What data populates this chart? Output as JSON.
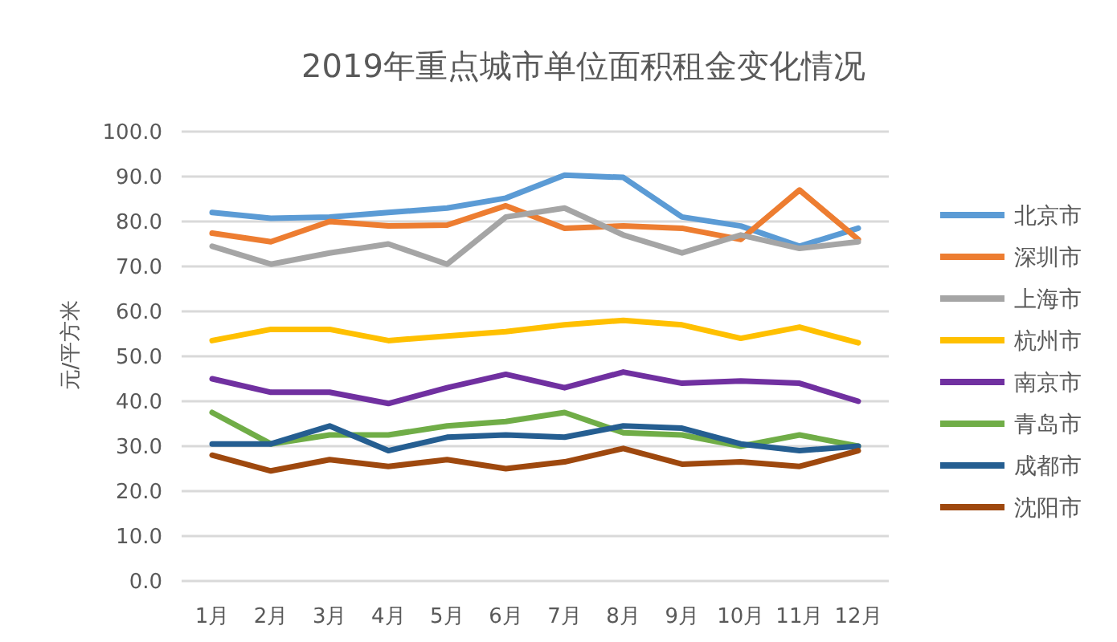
{
  "chart_data": {
    "type": "line",
    "title": "2019年重点城市单位面积租金变化情况",
    "ylabel": "元/平方米",
    "categories": [
      "1月",
      "2月",
      "3月",
      "4月",
      "5月",
      "6月",
      "7月",
      "8月",
      "9月",
      "10月",
      "11月",
      "12月"
    ],
    "series": [
      {
        "name": "北京市",
        "color": "#5b9bd5",
        "values": [
          82,
          80.7,
          81,
          82,
          83,
          85.2,
          90.3,
          89.8,
          81,
          79,
          74.5,
          78.5
        ]
      },
      {
        "name": "深圳市",
        "color": "#ed7d31",
        "values": [
          77.4,
          75.5,
          80,
          79,
          79.2,
          83.5,
          78.5,
          79,
          78.5,
          76,
          87,
          76
        ]
      },
      {
        "name": "上海市",
        "color": "#a5a5a5",
        "values": [
          74.5,
          70.5,
          73,
          75,
          70.5,
          81,
          83,
          77,
          73,
          77,
          74,
          75.5
        ]
      },
      {
        "name": "杭州市",
        "color": "#ffc000",
        "values": [
          53.5,
          56,
          56,
          53.5,
          54.5,
          55.5,
          57,
          58,
          57,
          54,
          56.5,
          53
        ]
      },
      {
        "name": "南京市",
        "color": "#7030a0",
        "values": [
          45,
          42,
          42,
          39.5,
          43,
          46,
          43,
          46.5,
          44,
          44.5,
          44,
          40
        ]
      },
      {
        "name": "青岛市",
        "color": "#70ad47",
        "values": [
          37.5,
          30.5,
          32.5,
          32.5,
          34.5,
          35.5,
          37.5,
          33,
          32.5,
          30,
          32.5,
          30
        ]
      },
      {
        "name": "成都市",
        "color": "#255e91",
        "values": [
          30.5,
          30.5,
          34.5,
          29,
          32,
          32.5,
          32,
          34.5,
          34,
          30.5,
          29,
          30
        ]
      },
      {
        "name": "沈阳市",
        "color": "#9e480e",
        "values": [
          28,
          24.5,
          27,
          25.5,
          27,
          25,
          26.5,
          29.5,
          26,
          26.5,
          25.5,
          29
        ]
      }
    ],
    "ylim": [
      0,
      100
    ],
    "yticks": [
      {
        "value": 0,
        "label": "0.0"
      },
      {
        "value": 10,
        "label": "10.0"
      },
      {
        "value": 20,
        "label": "20.0"
      },
      {
        "value": 30,
        "label": "30.0"
      },
      {
        "value": 40,
        "label": "40.0"
      },
      {
        "value": 50,
        "label": "50.0"
      },
      {
        "value": 60,
        "label": "60.0"
      },
      {
        "value": 70,
        "label": "70.0"
      },
      {
        "value": 80,
        "label": "80.0"
      },
      {
        "value": 90,
        "label": "90.0"
      },
      {
        "value": 100,
        "label": "100.0"
      }
    ],
    "grid": "y",
    "legend": "right",
    "marker": "none",
    "line_style": "solid"
  }
}
